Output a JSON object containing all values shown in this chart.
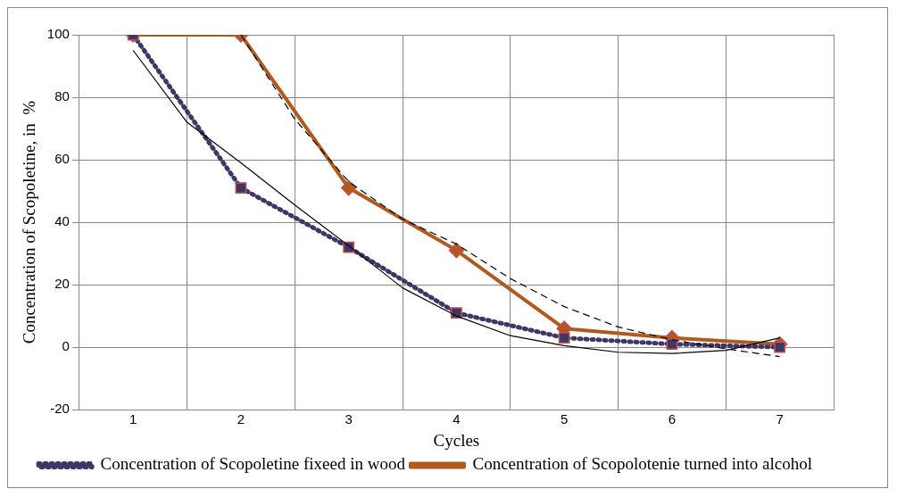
{
  "chart_data": {
    "type": "line",
    "xlabel": "Cycles",
    "ylabel": "Concentration of Scopoletine, in  %",
    "x": [
      1,
      2,
      3,
      4,
      5,
      6,
      7
    ],
    "xlim": [
      0.5,
      7.5
    ],
    "xticks": [
      1,
      {
        "value": 1.5,
        "label": null
      },
      2,
      {
        "value": 2.5,
        "label": null
      },
      3,
      {
        "value": 3.5,
        "label": null
      },
      4,
      {
        "value": 4.5,
        "label": null
      },
      5,
      {
        "value": 5.5,
        "label": null
      },
      6,
      {
        "value": 6.5,
        "label": null
      },
      7,
      {
        "value": 7.5,
        "label": null
      }
    ],
    "ylim": [
      -20,
      100
    ],
    "yticks": [
      -20,
      0,
      20,
      40,
      60,
      80,
      100
    ],
    "grid": true,
    "legend": "bottom",
    "series": [
      {
        "name": "Concentration of Scopolotenie turned into alcohol",
        "color": "#b05a1e",
        "marker": "diamond",
        "line_style": "solid",
        "values": [
          100,
          100,
          51,
          31,
          6,
          3,
          1
        ]
      },
      {
        "name": "Concentration of Scopoletine fixeed in wood",
        "color": "#3f3566",
        "marker": "square",
        "line_style": "dotted",
        "values": [
          100,
          51,
          32,
          11,
          3,
          1,
          0
        ]
      },
      {
        "color": "#000000",
        "marker": "none",
        "line_style": "solid",
        "x": [
          1,
          1.5,
          2,
          2.5,
          3,
          3.5,
          4,
          4.5,
          5,
          5.5,
          6,
          6.5,
          7
        ],
        "values": [
          95,
          72,
          59,
          45.5,
          32.5,
          19,
          10,
          3.7,
          0.5,
          -1.6,
          -2,
          -1,
          3
        ]
      },
      {
        "color": "#000000",
        "marker": "none",
        "line_style": "dashed",
        "x": [
          2,
          2.5,
          3,
          3.5,
          4,
          4.5,
          5,
          5.5,
          6,
          6.5,
          7
        ],
        "values": [
          100,
          73,
          53,
          41,
          33,
          22,
          13,
          6.5,
          2.4,
          -0.5,
          -3
        ]
      }
    ]
  }
}
